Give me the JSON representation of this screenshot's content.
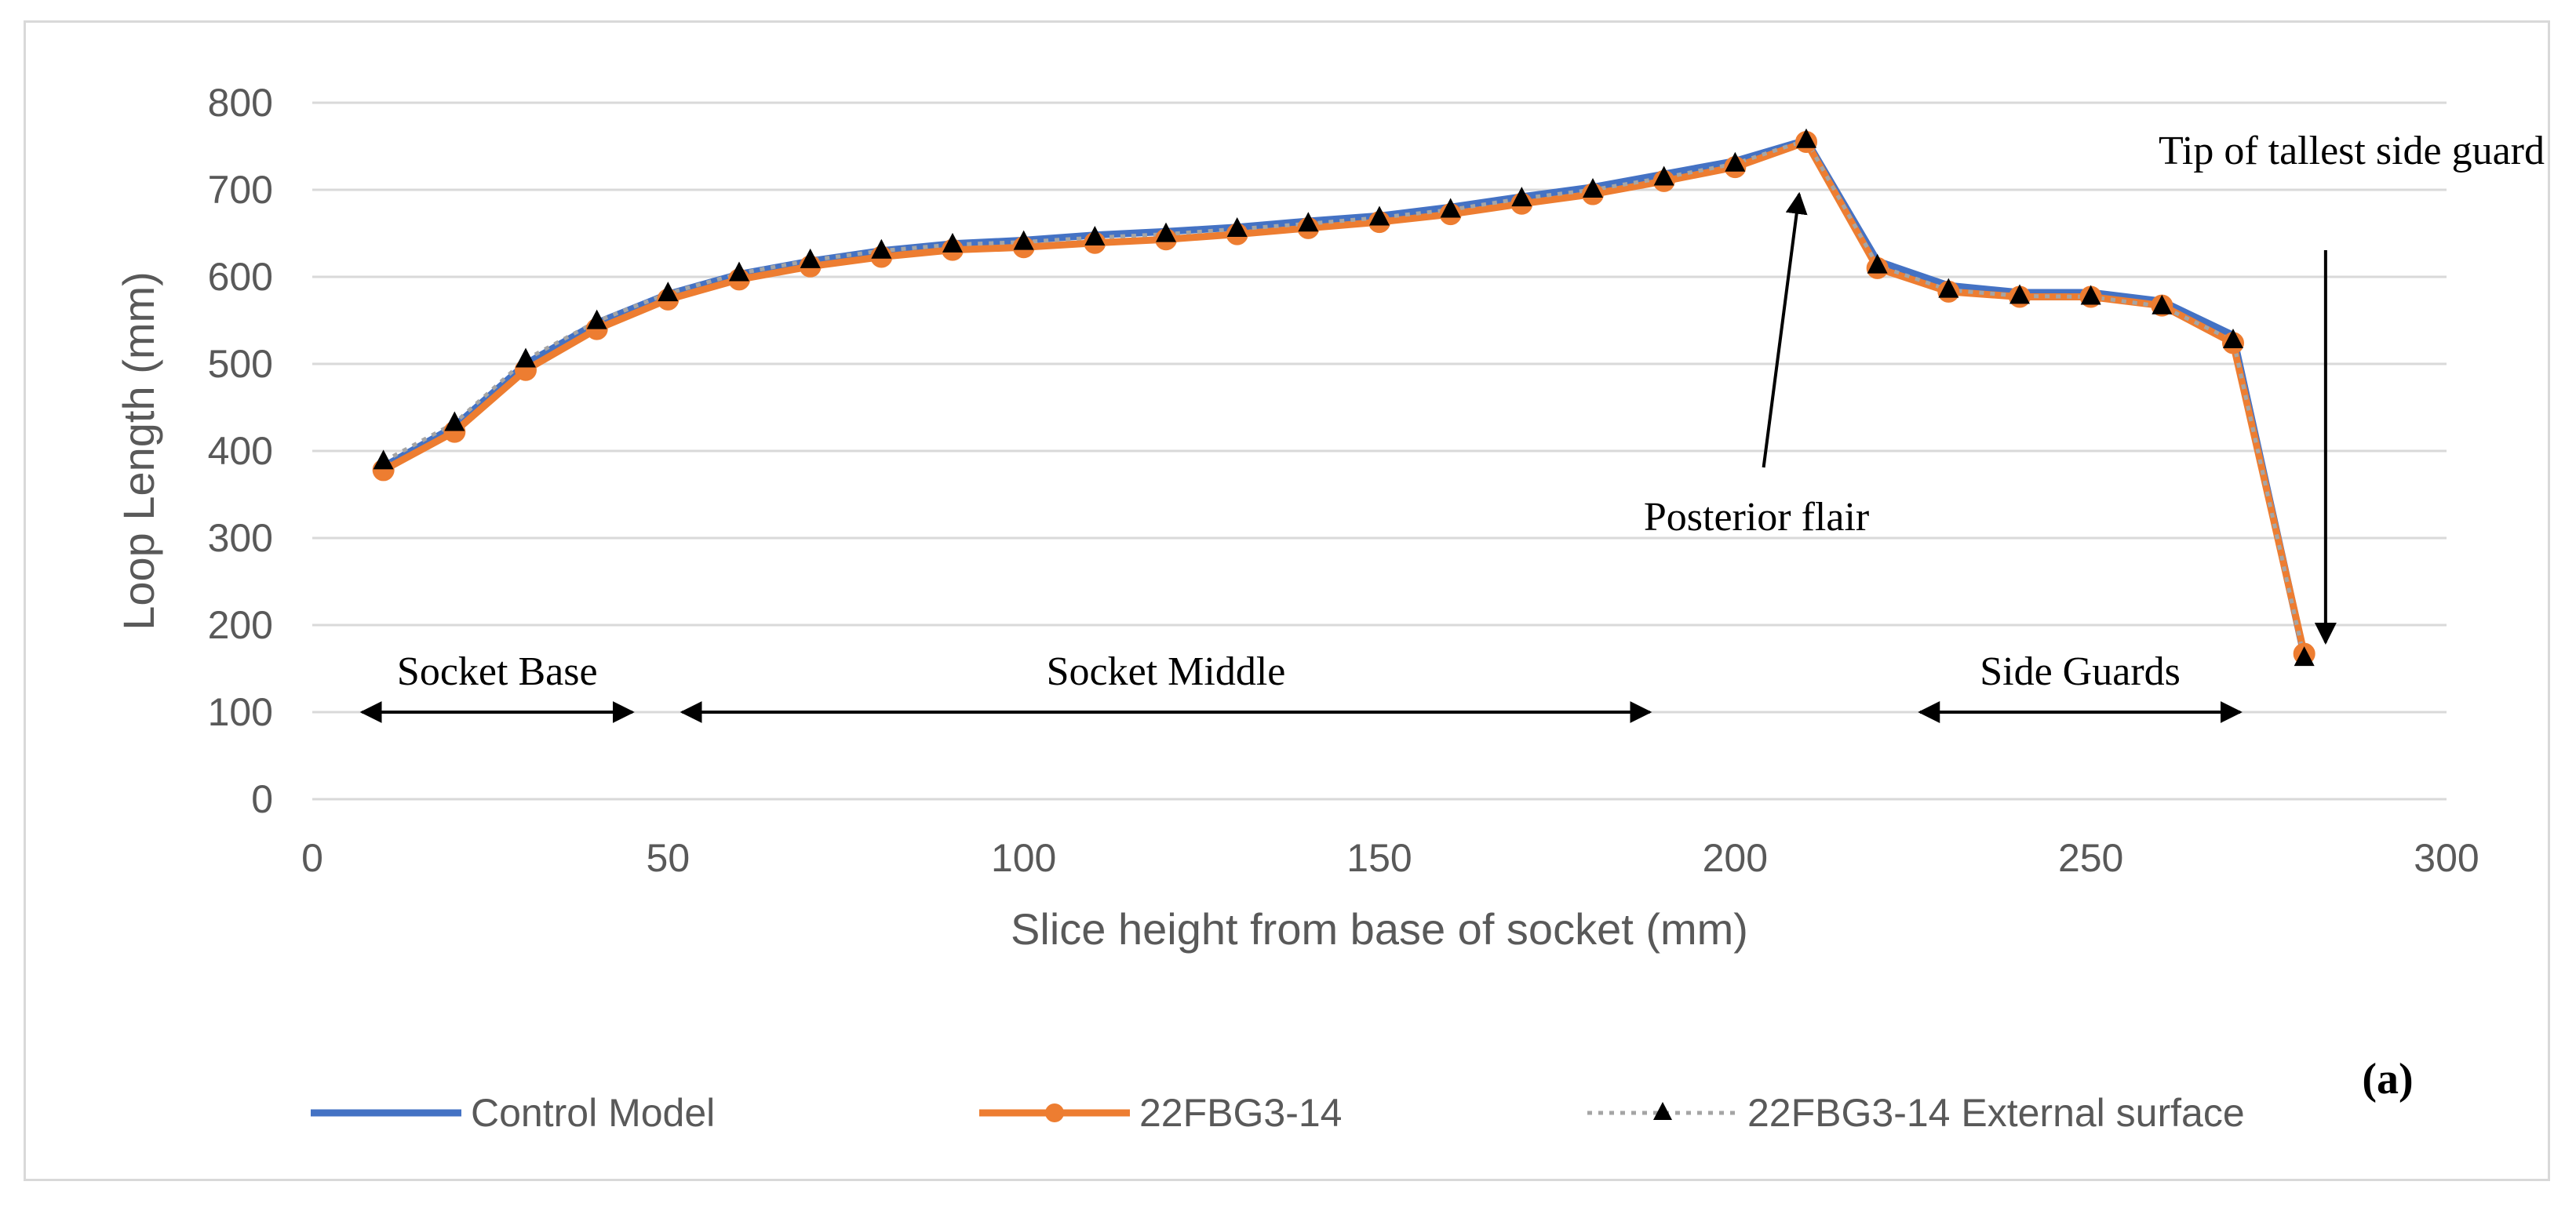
{
  "chart_data": {
    "type": "line",
    "title": "",
    "xlabel": "Slice height from base of socket (mm)",
    "ylabel": "Loop Length (mm)",
    "xlim": [
      0,
      300
    ],
    "ylim": [
      0,
      800
    ],
    "x_ticks": [
      "0",
      "50",
      "100",
      "150",
      "200",
      "250",
      "300"
    ],
    "y_ticks": [
      "0",
      "100",
      "200",
      "300",
      "400",
      "500",
      "600",
      "700",
      "800"
    ],
    "grid": true,
    "legend_position": "bottom",
    "panel_label": "(a)",
    "x": [
      10,
      20,
      30,
      40,
      50,
      60,
      70,
      80,
      90,
      100,
      110,
      120,
      130,
      140,
      150,
      160,
      170,
      180,
      190,
      200,
      210,
      220,
      230,
      240,
      250,
      260,
      270,
      280
    ],
    "series": [
      {
        "name": "Control Model",
        "color": "#4472c4",
        "marker": "none",
        "style": "solid",
        "values": [
          382,
          428,
          500,
          547,
          580,
          603,
          618,
          630,
          638,
          642,
          648,
          652,
          657,
          664,
          670,
          680,
          692,
          703,
          718,
          733,
          757,
          618,
          590,
          582,
          582,
          572,
          533,
          165
        ]
      },
      {
        "name": "22FBG3-14",
        "color": "#ed7d31",
        "marker": "circle",
        "style": "solid",
        "values": [
          378,
          422,
          493,
          540,
          574,
          597,
          612,
          623,
          631,
          634,
          639,
          643,
          649,
          656,
          663,
          672,
          684,
          695,
          710,
          726,
          755,
          610,
          583,
          577,
          577,
          567,
          524,
          167
        ]
      },
      {
        "name": "22FBG3-14 External surface",
        "color": "#a5a5a5",
        "marker": "triangle",
        "style": "dotted",
        "values": [
          388,
          432,
          505,
          549,
          581,
          604,
          619,
          630,
          637,
          640,
          645,
          649,
          655,
          661,
          668,
          677,
          690,
          700,
          714,
          730,
          757,
          613,
          585,
          578,
          577,
          566,
          527,
          162
        ]
      }
    ],
    "annotations": [
      {
        "text": "Socket Base",
        "x_start": 7,
        "x_end": 45
      },
      {
        "text": "Socket Middle",
        "x_start": 52,
        "x_end": 188
      },
      {
        "text": "Side Guards",
        "x_start": 226,
        "x_end": 271
      },
      {
        "text": "Posterior flair",
        "arrow_x_data": 209,
        "arrow_y_data": 695
      },
      {
        "text": "Tip of tallest side guard",
        "arrow_x_data": 283,
        "arrow_y_data": 180
      }
    ]
  }
}
